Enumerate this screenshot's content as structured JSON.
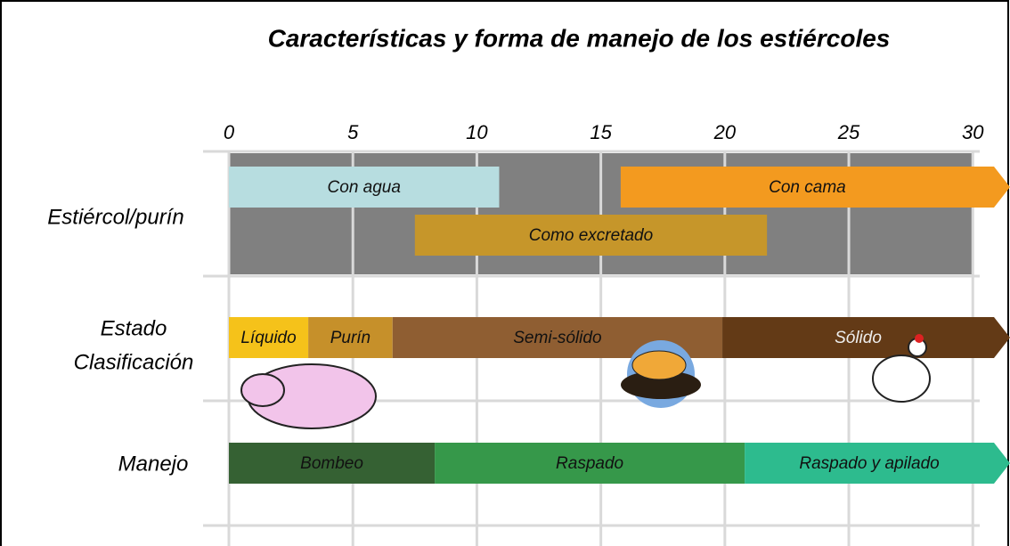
{
  "chart_data": {
    "type": "range",
    "title": "Características y forma de manejo de los estiércoles",
    "xlim": [
      0,
      31.5
    ],
    "xticks": [
      0,
      5,
      10,
      15,
      20,
      25,
      30
    ],
    "grid": true,
    "rows": [
      {
        "label": [
          "Estiércol/purín"
        ],
        "lanes": [
          [
            {
              "label": "Con agua",
              "start": 0,
              "end": 10.9,
              "color": "#b7dde0",
              "arrow": false
            },
            {
              "label": "Con cama",
              "start": 15.8,
              "end": 31.5,
              "color": "#f39a1f",
              "arrow": true
            }
          ],
          [
            {
              "label": "Como excretado",
              "start": 7.5,
              "end": 21.7,
              "color": "#c6962a",
              "arrow": false
            }
          ]
        ]
      },
      {
        "label": [
          "Estado",
          "Clasificación"
        ],
        "lanes": [
          [
            {
              "label": "Líquido",
              "start": 0,
              "end": 3.2,
              "color": "#f5c21a",
              "arrow": false
            },
            {
              "label": "Purín",
              "start": 3.2,
              "end": 6.6,
              "color": "#c6902a",
              "arrow": false
            },
            {
              "label": "Semi-sólido",
              "start": 6.6,
              "end": 19.9,
              "color": "#8f5e32",
              "arrow": false
            },
            {
              "label": "Sólido",
              "start": 19.9,
              "end": 31.5,
              "color": "#633a16",
              "arrow": true
            }
          ]
        ]
      },
      {
        "label": [
          "Manejo"
        ],
        "lanes": [
          [
            {
              "label": "Bombeo",
              "start": 0,
              "end": 8.3,
              "color": "#356133",
              "arrow": false
            },
            {
              "label": "Raspado",
              "start": 8.3,
              "end": 20.8,
              "color": "#36984a",
              "arrow": false
            },
            {
              "label": "Raspado y apilado",
              "start": 20.8,
              "end": 31.5,
              "color": "#2dbb8e",
              "arrow": true
            }
          ]
        ]
      }
    ]
  }
}
